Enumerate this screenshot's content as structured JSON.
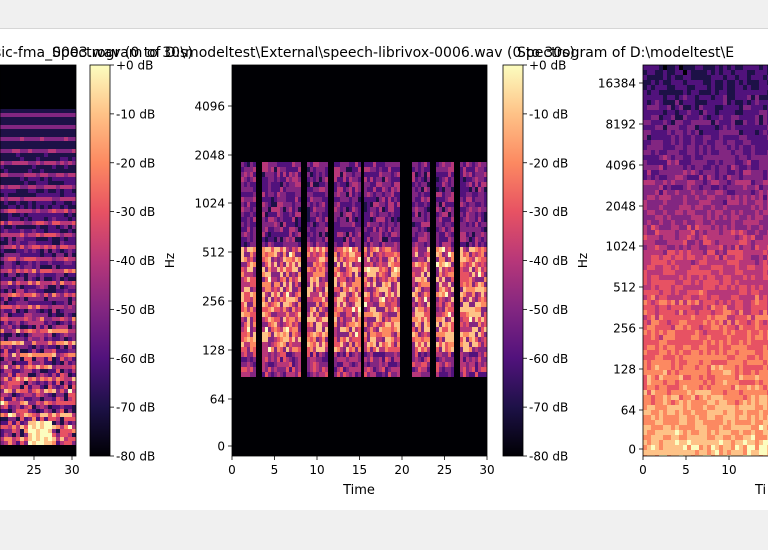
{
  "colors": {
    "figure_bg": "#ffffff",
    "window_bg": "#f0f0f0",
    "magma": [
      "#000004",
      "#1d1147",
      "#51127c",
      "#822681",
      "#b73779",
      "#e75263",
      "#fc8961",
      "#fec287",
      "#fcfdbf"
    ]
  },
  "chart_data": [
    {
      "type": "heatmap",
      "title": "sic-fma_0003.wav (0 to 30s)",
      "xlabel": "",
      "ylabel": "",
      "x_ticks": [
        "25",
        "30"
      ],
      "y_ticks": [],
      "y_scale": "log",
      "colorbar": {
        "ticks": [
          "+0 dB",
          "-10 dB",
          "-20 dB",
          "-30 dB",
          "-40 dB",
          "-50 dB",
          "-60 dB",
          "-70 dB",
          "-80 dB"
        ],
        "ylabel": "Hz",
        "range": [
          -80,
          0
        ]
      }
    },
    {
      "type": "heatmap",
      "title": "Spectrogram of D:\\modeltest\\External\\speech-librivox-0006.wav (0 to 30s)",
      "xlabel": "Time",
      "ylabel": "",
      "x_ticks": [
        "0",
        "5",
        "10",
        "15",
        "20",
        "25",
        "30"
      ],
      "y_ticks": [
        "4096",
        "2048",
        "1024",
        "512",
        "256",
        "128",
        "64",
        "0"
      ],
      "y_scale": "log",
      "xlim": [
        0,
        30
      ],
      "colorbar": {
        "ticks": [
          "+0 dB",
          "-10 dB",
          "-20 dB",
          "-30 dB",
          "-40 dB",
          "-50 dB",
          "-60 dB",
          "-70 dB",
          "-80 dB"
        ],
        "ylabel": "Hz",
        "range": [
          -80,
          0
        ]
      }
    },
    {
      "type": "heatmap",
      "title": "Spectrogram of D:\\modeltest\\E",
      "xlabel": "Ti",
      "ylabel": "",
      "x_ticks": [
        "0",
        "5",
        "10",
        "15"
      ],
      "y_ticks": [
        "16384",
        "8192",
        "4096",
        "2048",
        "1024",
        "512",
        "256",
        "128",
        "64",
        "0"
      ],
      "y_scale": "log"
    }
  ]
}
